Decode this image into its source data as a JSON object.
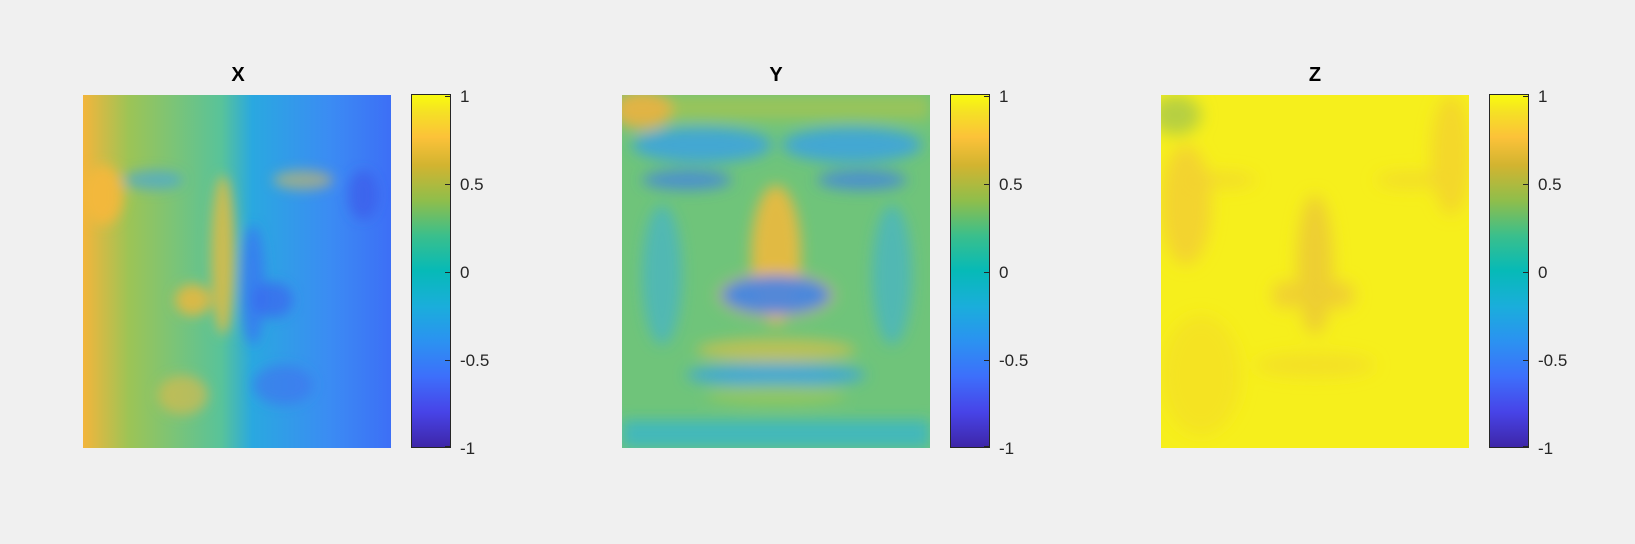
{
  "chart_data": [
    {
      "type": "heatmap",
      "title": "X",
      "colormap": "parula",
      "clim": [
        -1,
        1
      ],
      "colorbar_ticks": [
        {
          "value": 1,
          "label": "1"
        },
        {
          "value": 0.5,
          "label": "0.5"
        },
        {
          "value": 0,
          "label": "0"
        },
        {
          "value": -0.5,
          "label": "-0.5"
        },
        {
          "value": -1,
          "label": "-1"
        }
      ],
      "dominant_colors": [
        "#f5b23b",
        "#37c2a8",
        "#3a7df5"
      ]
    },
    {
      "type": "heatmap",
      "title": "Y",
      "colormap": "parula",
      "clim": [
        -1,
        1
      ],
      "colorbar_ticks": [
        {
          "value": 1,
          "label": "1"
        },
        {
          "value": 0.5,
          "label": "0.5"
        },
        {
          "value": 0,
          "label": "0"
        },
        {
          "value": -0.5,
          "label": "-0.5"
        },
        {
          "value": -1,
          "label": "-1"
        }
      ],
      "dominant_colors": [
        "#8fc45a",
        "#f6b93c",
        "#2f8ff2"
      ]
    },
    {
      "type": "heatmap",
      "title": "Z",
      "colormap": "parula",
      "clim": [
        -1,
        1
      ],
      "colorbar_ticks": [
        {
          "value": 1,
          "label": "1"
        },
        {
          "value": 0.5,
          "label": "0.5"
        },
        {
          "value": 0,
          "label": "0"
        },
        {
          "value": -0.5,
          "label": "-0.5"
        },
        {
          "value": -1,
          "label": "-1"
        }
      ],
      "dominant_colors": [
        "#f5ee1e",
        "#f3c53a",
        "#f7f71a"
      ]
    }
  ]
}
